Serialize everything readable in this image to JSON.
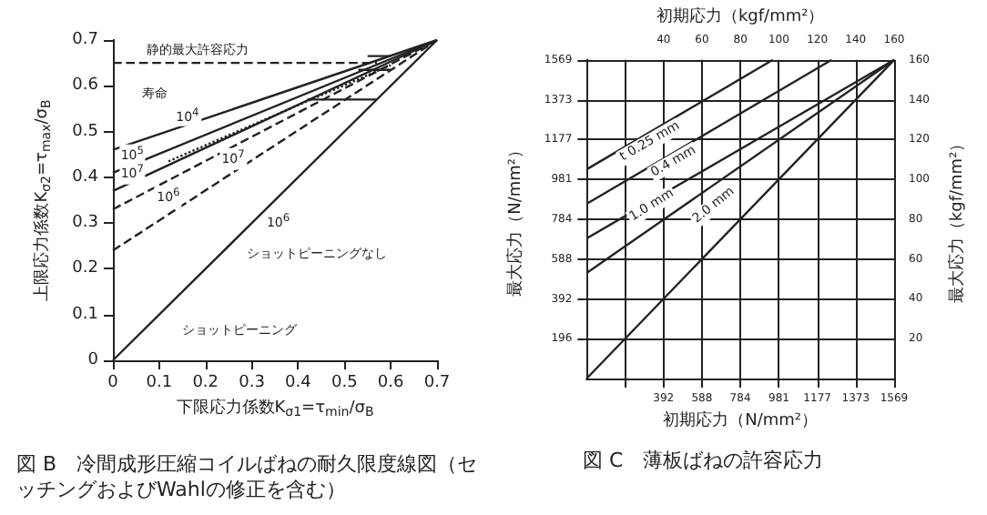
{
  "chart_data": [
    {
      "type": "line",
      "title": "図 B　冷間成形圧縮コイルばねの耐久限度線図（セッチングおよびWahlの修正を含む）",
      "xlabel": "下限応力係数K$_{σ1}$=τ$_{min}$/σ$_{B}$",
      "ylabel": "上限応力係数K$_{σ2}$=τ$_{max}$/σ$_{B}$",
      "xlim": [
        0,
        0.7
      ],
      "ylim": [
        0,
        0.7
      ],
      "xticks": [
        0,
        0.1,
        0.2,
        0.3,
        0.4,
        0.5,
        0.6,
        0.7
      ],
      "yticks": [
        0,
        0.1,
        0.2,
        0.3,
        0.4,
        0.5,
        0.6,
        0.7
      ],
      "grid": false,
      "marker": "none",
      "series": [
        {
          "color": "#222222",
          "line_style": "solid",
          "x": [
            0,
            0.7
          ],
          "values": [
            0.46,
            0.7
          ]
        },
        {
          "color": "#222222",
          "line_style": "solid",
          "x": [
            0,
            0.7
          ],
          "values": [
            0.41,
            0.7
          ]
        },
        {
          "color": "#222222",
          "line_style": "solid",
          "x": [
            0,
            0.7
          ],
          "values": [
            0.37,
            0.7
          ]
        },
        {
          "color": "#222222",
          "line_style": "dotted",
          "x": [
            0.12,
            0.6
          ],
          "values": [
            0.435,
            0.645
          ]
        },
        {
          "color": "#222222",
          "line_style": "dashed",
          "x": [
            0,
            0.7
          ],
          "values": [
            0.33,
            0.7
          ]
        },
        {
          "color": "#222222",
          "line_style": "dashed",
          "x": [
            0,
            0.7
          ],
          "values": [
            0.24,
            0.7
          ]
        },
        {
          "color": "#222222",
          "line_style": "solid",
          "x": [
            0,
            0.7
          ],
          "values": [
            0,
            0.7
          ]
        },
        {
          "color": "#222222",
          "line_style": "dashed",
          "x": [
            0,
            0.57
          ],
          "values": [
            0.65,
            0.65
          ]
        },
        {
          "color": "#222222",
          "line_style": "solid",
          "x": [
            0.42,
            0.57
          ],
          "values": [
            0.57,
            0.57
          ]
        },
        {
          "color": "#222222",
          "line_style": "solid",
          "x": [
            0.53,
            0.6
          ],
          "values": [
            0.635,
            0.635
          ]
        },
        {
          "color": "#222222",
          "line_style": "solid",
          "x": [
            0.55,
            0.6
          ],
          "values": [
            0.665,
            0.665
          ]
        }
      ],
      "annotations": [
        "静的最大許容応力",
        "寿命",
        "10$^{4}$",
        "10$^{5}$",
        "10$^{7}$",
        "10$^{7}$",
        "10$^{6}$",
        "10$^{6}$",
        "ショットピーニングなし",
        "ショットピーニング"
      ]
    },
    {
      "type": "line",
      "title": "図 C　薄板ばねの許容応力",
      "xlabel": "初期応力（N/mm²）",
      "ylabel": "最大応力（N/mm²）",
      "x2label": "初期応力（kgf/mm²）",
      "y2label": "最大応力（kgf/mm²）",
      "xlim": [
        0,
        1569
      ],
      "ylim": [
        0,
        1569
      ],
      "xticks": [
        {
          "value": 196,
          "label": null
        },
        392,
        588,
        784,
        981,
        1177,
        1373,
        1569
      ],
      "yticks": [
        196,
        392,
        588,
        784,
        981,
        1177,
        1373,
        1569
      ],
      "x2lim": [
        0,
        160
      ],
      "x2ticks": [
        40,
        60,
        80,
        100,
        120,
        140,
        160
      ],
      "y2lim": [
        0,
        160
      ],
      "y2ticks": [
        20,
        40,
        60,
        80,
        100,
        120,
        140,
        160
      ],
      "grid": true,
      "marker": "none",
      "series": [
        {
          "color": "#222222",
          "line_style": "solid",
          "x": [
            0,
            950
          ],
          "values": [
            1030,
            1569
          ]
        },
        {
          "color": "#222222",
          "line_style": "solid",
          "x": [
            0,
            1250
          ],
          "values": [
            860,
            1569
          ]
        },
        {
          "color": "#222222",
          "line_style": "solid",
          "x": [
            0,
            1569
          ],
          "values": [
            690,
            1569
          ]
        },
        {
          "color": "#222222",
          "line_style": "solid",
          "x": [
            0,
            1569
          ],
          "values": [
            520,
            1569
          ]
        },
        {
          "color": "#222222",
          "line_style": "solid",
          "x": [
            0,
            1569
          ],
          "values": [
            0,
            1569
          ]
        }
      ],
      "annotations": [
        "t 0.25 mm",
        "0.4 mm",
        "1.0 mm",
        "2.0 mm"
      ]
    }
  ]
}
